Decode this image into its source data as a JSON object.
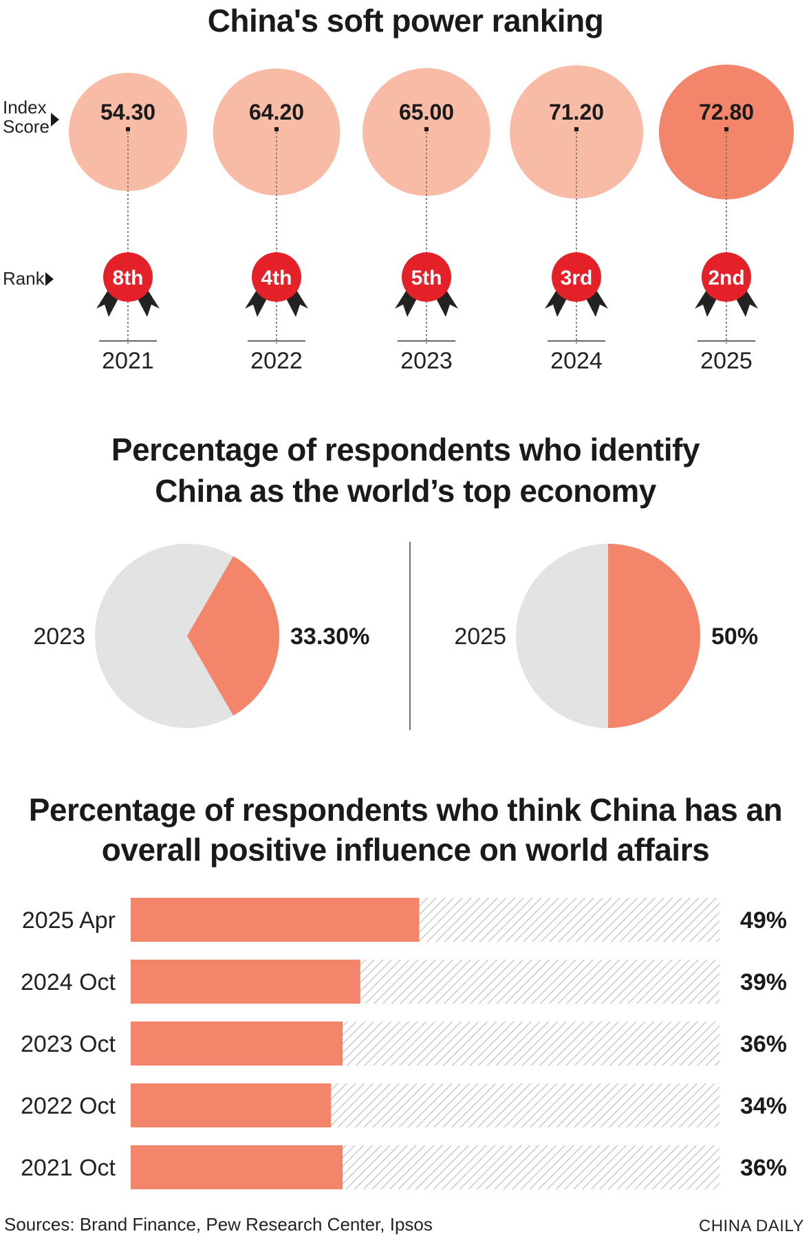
{
  "colors": {
    "circle_light": "#f8bca6",
    "circle_dark": "#f3856a",
    "medal_red": "#e42128",
    "ribbon": "#222222",
    "pie_slice": "#f3856a",
    "pie_rest": "#e4e3e4",
    "bar_fill": "#f3856a",
    "bar_hatch": "#c9c9c9"
  },
  "section1": {
    "title": "China's soft power ranking",
    "index_label_1": "Index",
    "index_label_2": "Score",
    "rank_label": "Rank"
  },
  "section2": {
    "title_1": "Percentage of respondents who identify",
    "title_2": "China as the world’s top economy"
  },
  "section3": {
    "title_1": "Percentage of respondents who think China has an",
    "title_2": "overall positive influence on world affairs"
  },
  "footer": {
    "sources": "Sources: Brand Finance, Pew Research Center, Ipsos",
    "credit": "CHINA DAILY"
  },
  "chart_data": [
    {
      "type": "scatter",
      "title": "China's soft power ranking",
      "categories": [
        "2021",
        "2022",
        "2023",
        "2024",
        "2025"
      ],
      "series": [
        {
          "name": "Index Score",
          "values": [
            54.3,
            64.2,
            65.0,
            71.2,
            72.8
          ],
          "labels": [
            "54.30",
            "64.20",
            "65.00",
            "71.20",
            "72.80"
          ]
        },
        {
          "name": "Rank",
          "values": [
            8,
            4,
            5,
            3,
            2
          ],
          "labels": [
            "8th",
            "4th",
            "5th",
            "3rd",
            "2nd"
          ]
        }
      ],
      "highlight_index": 4
    },
    {
      "type": "pie",
      "title": "Percentage of respondents who identify China as the world’s top economy",
      "pies": [
        {
          "label": "2023",
          "value": 33.3,
          "value_label": "33.30%"
        },
        {
          "label": "2025",
          "value": 50,
          "value_label": "50%"
        }
      ]
    },
    {
      "type": "bar",
      "orientation": "horizontal",
      "title": "Percentage of respondents who think China has an overall positive influence on world affairs",
      "categories": [
        "2025 Apr",
        "2024 Oct",
        "2023 Oct",
        "2022 Oct",
        "2021 Oct"
      ],
      "values": [
        49,
        39,
        36,
        34,
        36
      ],
      "value_labels": [
        "49%",
        "39%",
        "36%",
        "34%",
        "36%"
      ],
      "xlim": [
        0,
        100
      ]
    }
  ]
}
